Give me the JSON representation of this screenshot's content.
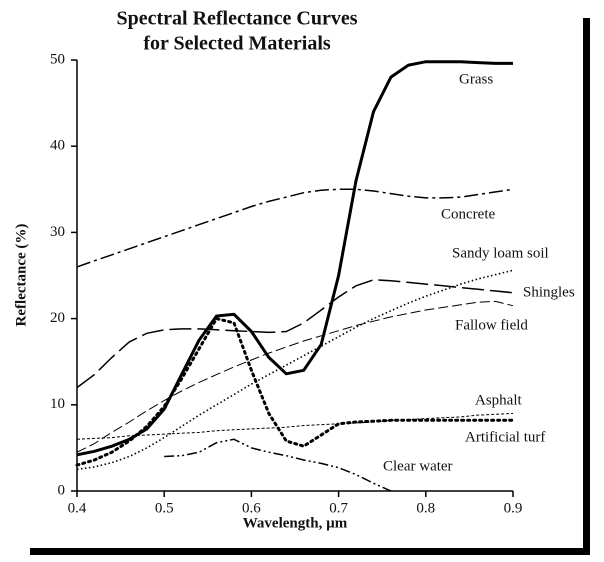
{
  "chart_data": {
    "type": "line",
    "title": [
      "Spectral Reflectance Curves",
      "for Selected Materials"
    ],
    "xlabel": "Wavelength, µm",
    "ylabel": "Reflectance (%)",
    "x": [
      0.4,
      0.42,
      0.44,
      0.46,
      0.48,
      0.5,
      0.52,
      0.54,
      0.56,
      0.58,
      0.6,
      0.62,
      0.64,
      0.66,
      0.68,
      0.7,
      0.72,
      0.74,
      0.76,
      0.78,
      0.8,
      0.82,
      0.84,
      0.86,
      0.88,
      0.9
    ],
    "xlim": [
      0.4,
      0.9
    ],
    "xticks": [
      0.4,
      0.5,
      0.6,
      0.7,
      0.8,
      0.9
    ],
    "ylim": [
      0,
      50
    ],
    "yticks": [
      0,
      10,
      20,
      30,
      40,
      50
    ],
    "series": [
      {
        "name": "Grass",
        "color": "#000000",
        "values": [
          4.2,
          4.6,
          5.2,
          6,
          7.2,
          9.5,
          13.5,
          17.5,
          20.3,
          20.5,
          18.5,
          15.5,
          13.6,
          14,
          17,
          25,
          36,
          44,
          48,
          49.4,
          49.8,
          49.8,
          49.8,
          49.7,
          49.6,
          49.6
        ]
      },
      {
        "name": "Concrete",
        "color": "#000000",
        "values": [
          26,
          26.7,
          27.4,
          28.1,
          28.8,
          29.5,
          30.2,
          30.9,
          31.6,
          32.3,
          33,
          33.6,
          34.1,
          34.6,
          34.9,
          35,
          35,
          34.8,
          34.5,
          34.2,
          34,
          34,
          34.1,
          34.4,
          34.7,
          35
        ]
      },
      {
        "name": "Sandy loam soil",
        "color": "#000000",
        "values": [
          2.5,
          2.8,
          3.3,
          4,
          5,
          6.2,
          7.5,
          8.8,
          10,
          11.2,
          12.4,
          13.5,
          14.6,
          15.7,
          16.8,
          17.9,
          19,
          20,
          20.9,
          21.8,
          22.6,
          23.3,
          24,
          24.6,
          25.1,
          25.6
        ]
      },
      {
        "name": "Shingles",
        "color": "#000000",
        "values": [
          12,
          13.5,
          15.5,
          17.3,
          18.3,
          18.7,
          18.8,
          18.8,
          18.7,
          18.6,
          18.5,
          18.4,
          18.5,
          19.5,
          21,
          22.5,
          23.8,
          24.5,
          24.4,
          24.2,
          24,
          23.8,
          23.6,
          23.4,
          23.2,
          23
        ]
      },
      {
        "name": "Fallow field",
        "color": "#000000",
        "values": [
          4.5,
          5.5,
          6.8,
          8,
          9.3,
          10.5,
          11.6,
          12.6,
          13.5,
          14.4,
          15.2,
          16,
          16.7,
          17.4,
          18,
          18.6,
          19.2,
          19.7,
          20.2,
          20.6,
          21,
          21.3,
          21.6,
          21.9,
          22,
          21.5
        ]
      },
      {
        "name": "Asphalt",
        "color": "#000000",
        "values": [
          6,
          6.1,
          6.2,
          6.4,
          6.5,
          6.6,
          6.7,
          6.8,
          7,
          7.1,
          7.2,
          7.3,
          7.4,
          7.6,
          7.7,
          7.8,
          7.9,
          8,
          8.2,
          8.3,
          8.4,
          8.5,
          8.6,
          8.8,
          8.9,
          9
        ]
      },
      {
        "name": "Artificial turf",
        "color": "#000000",
        "values": [
          3,
          3.6,
          4.5,
          5.8,
          7.5,
          9.8,
          13,
          16.5,
          20,
          19.5,
          14,
          9,
          5.8,
          5.2,
          6.5,
          7.8,
          8,
          8.1,
          8.2,
          8.2,
          8.2,
          8.2,
          8.2,
          8.2,
          8.2,
          8.2
        ]
      },
      {
        "name": "Clear water",
        "color": "#000000",
        "values": [
          null,
          null,
          null,
          null,
          null,
          4,
          4.1,
          4.5,
          5.6,
          6,
          5,
          4.5,
          4.1,
          3.6,
          3.2,
          2.7,
          1.9,
          0.9,
          0,
          null,
          null,
          null,
          null,
          null,
          null,
          null
        ]
      }
    ]
  }
}
